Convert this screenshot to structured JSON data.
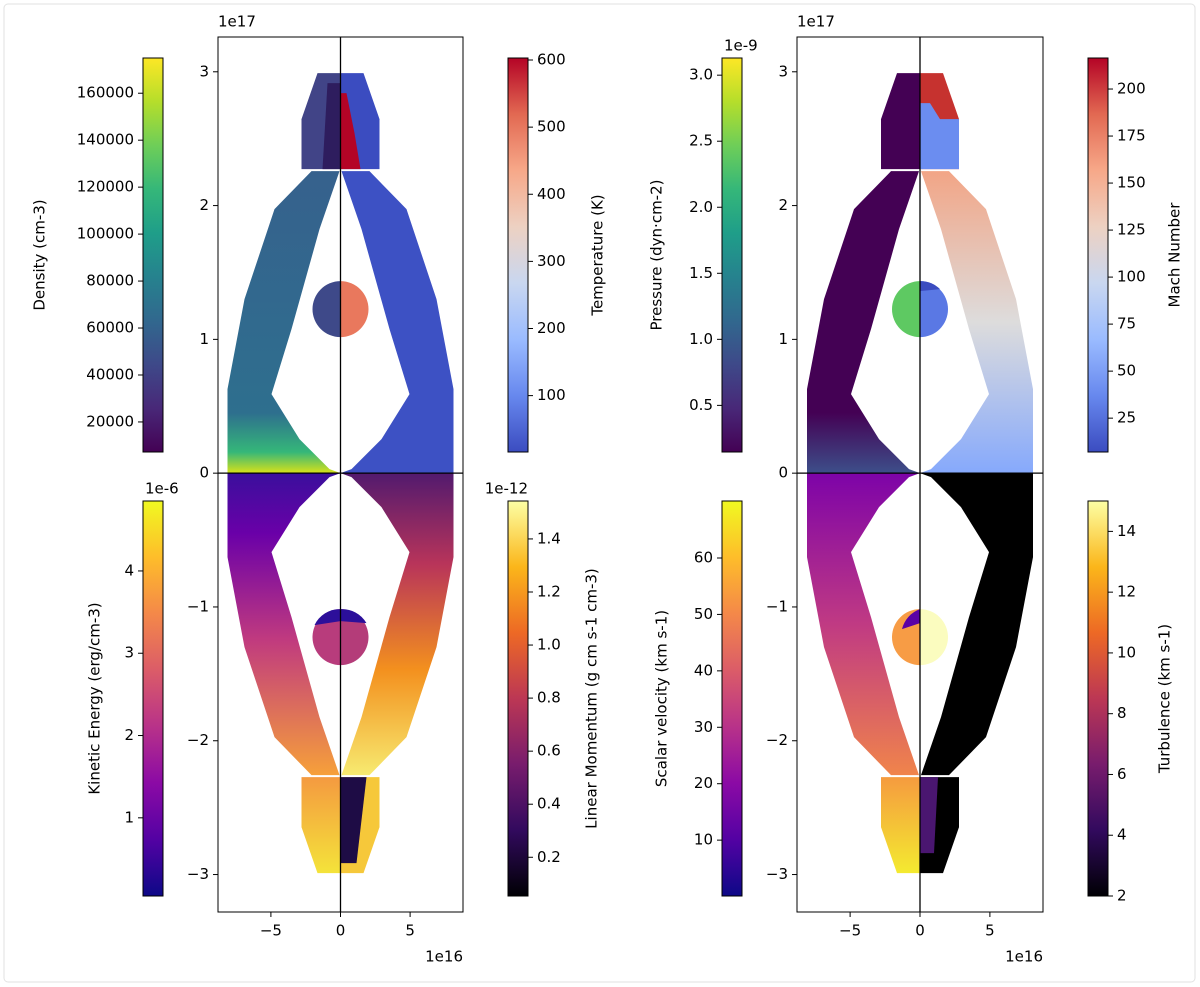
{
  "chart_data": [
    {
      "type": "field",
      "xlim": [
        -8.8,
        8.8
      ],
      "ylim": [
        -3.28,
        3.26
      ],
      "xticks": [
        {
          "value": -5,
          "label": "−5"
        },
        0,
        5
      ],
      "yticks": [
        {
          "value": -3,
          "label": "−3"
        },
        {
          "value": -2,
          "label": "−2"
        },
        {
          "value": -1,
          "label": "−1"
        },
        0,
        1,
        2,
        3
      ],
      "x_offset": "1e16",
      "y_offset": "1e17",
      "colorbars": [
        {
          "label": "Density (cm-3)",
          "colormap": "viridis",
          "clim": [
            7200,
            175000
          ],
          "ticks": [
            20000,
            40000,
            60000,
            80000,
            100000,
            120000,
            140000,
            160000
          ]
        },
        {
          "label": "Temperature (K)",
          "colormap": "coolwarm",
          "clim": [
            16,
            603
          ],
          "ticks": [
            100,
            200,
            300,
            400,
            500,
            600
          ]
        },
        {
          "label": "Kinetic Energy (erg/cm-3)",
          "colormap": "plasma",
          "offset": "1e-6",
          "clim": [
            0.05,
            4.85
          ],
          "ticks": [
            1,
            2,
            3,
            4
          ]
        },
        {
          "label": "Linear Momentum (g cm s-1 cm-3)",
          "colormap": "inferno",
          "offset": "1e-12",
          "clim": [
            0.054,
            1.543
          ],
          "ticks": [
            0.2,
            0.4,
            0.6,
            0.8,
            {
              "value": 1.0,
              "label": "1.0"
            },
            1.2,
            1.4
          ]
        }
      ]
    },
    {
      "type": "field",
      "xlim": [
        -8.8,
        8.8
      ],
      "ylim": [
        -3.28,
        3.26
      ],
      "xticks": [
        {
          "value": -5,
          "label": "−5"
        },
        0,
        5
      ],
      "yticks": [
        {
          "value": -3,
          "label": "−3"
        },
        {
          "value": -2,
          "label": "−2"
        },
        {
          "value": -1,
          "label": "−1"
        },
        0,
        1,
        2,
        3
      ],
      "x_offset": "1e16",
      "y_offset": "1e17",
      "colorbars": [
        {
          "label": "Pressure (dyn·cm-2)",
          "colormap": "viridis",
          "offset": "1e-9",
          "clim": [
            0.147,
            3.13
          ],
          "ticks": [
            0.5,
            {
              "value": 1.0,
              "label": "1.0"
            },
            1.5,
            {
              "value": 2.0,
              "label": "2.0"
            },
            2.5,
            {
              "value": 3.0,
              "label": "3.0"
            }
          ]
        },
        {
          "label": "Mach Number",
          "colormap": "coolwarm",
          "clim": [
            7,
            216.5
          ],
          "ticks": [
            25,
            50,
            75,
            100,
            125,
            150,
            175,
            200
          ]
        },
        {
          "label": "Scalar velocity (km s-1)",
          "colormap": "plasma",
          "clim": [
            0.1,
            70.1
          ],
          "ticks": [
            10,
            20,
            30,
            40,
            50,
            60
          ]
        },
        {
          "label": "Turbulence (km s-1)",
          "colormap": "inferno",
          "clim": [
            2,
            15
          ],
          "ticks": [
            2,
            4,
            6,
            8,
            10,
            12,
            14
          ]
        }
      ]
    }
  ]
}
